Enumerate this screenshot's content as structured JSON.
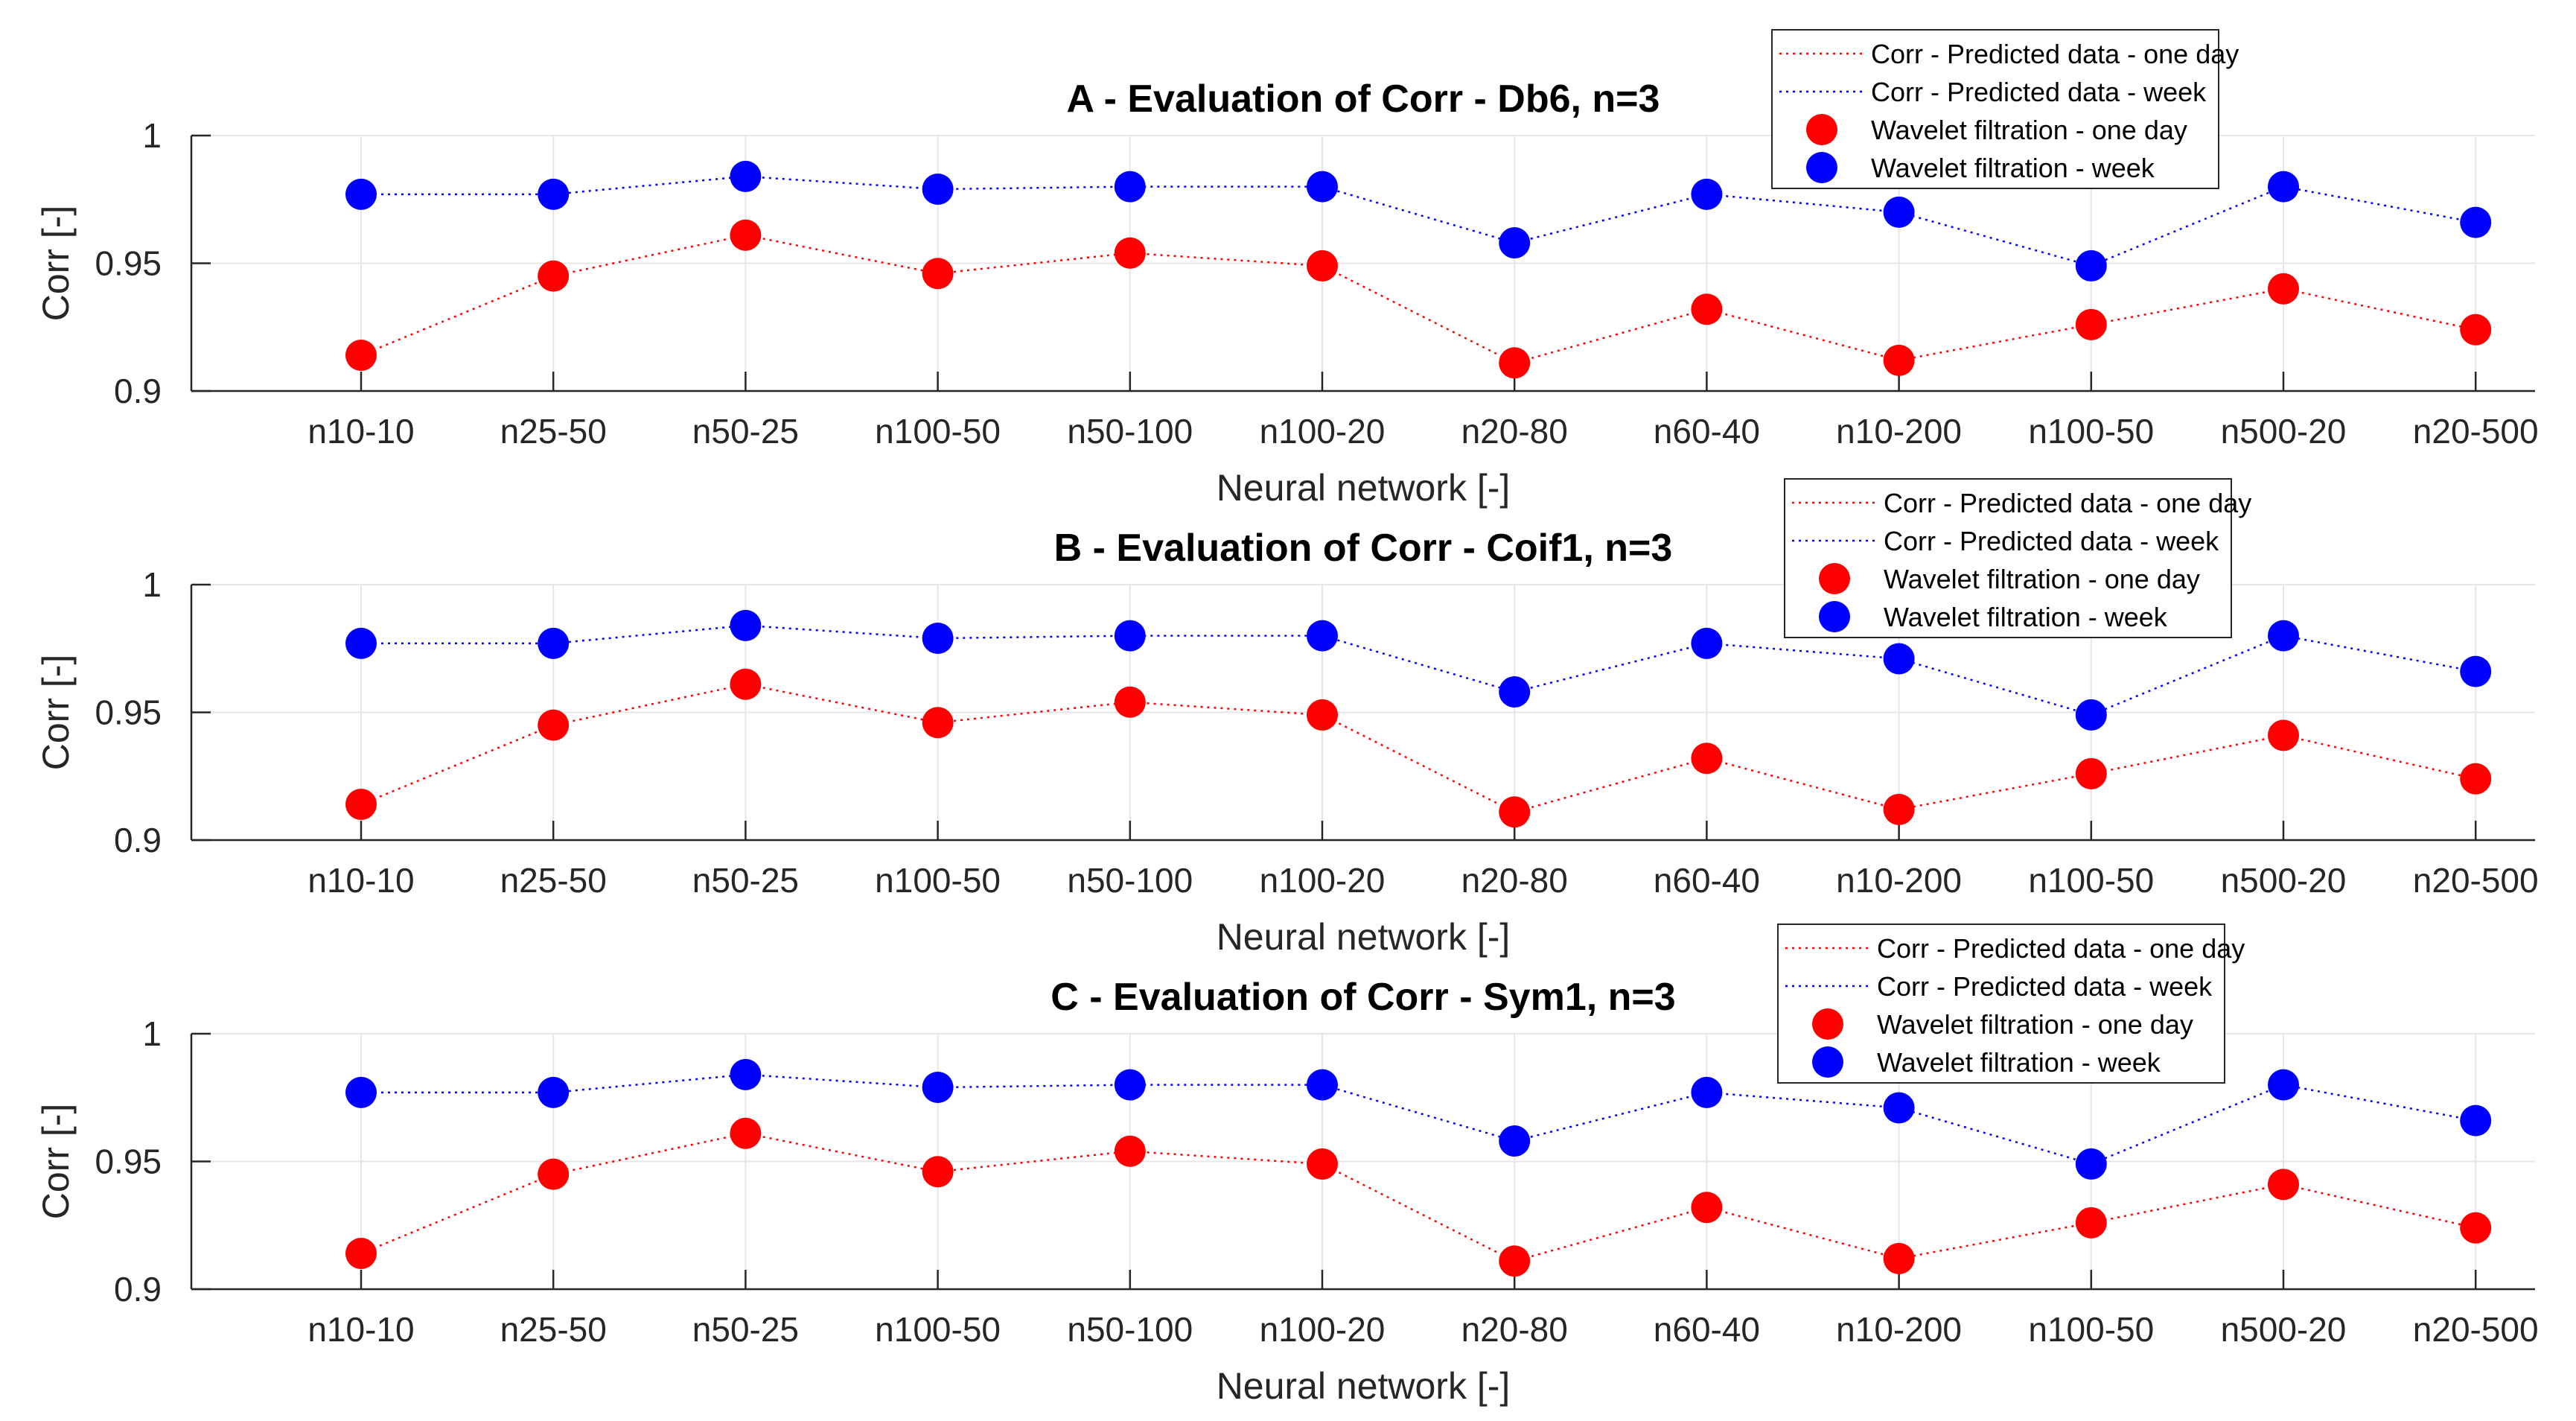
{
  "chart_data": [
    {
      "type": "line",
      "title": "A - Evaluation of Corr - Db6, n=3",
      "xlabel": "Neural network [-]",
      "ylabel": "Corr [-]",
      "ylim": [
        0.9,
        1.0
      ],
      "yticks": [
        "0.9",
        "0.95",
        "1"
      ],
      "grid": true,
      "legend_position": "top-right",
      "categories": [
        "n10-10",
        "n25-50",
        "n50-25",
        "n100-50",
        "n50-100",
        "n100-20",
        "n20-80",
        "n60-40",
        "n10-200",
        "n100-50",
        "n500-20",
        "n20-500"
      ],
      "series": [
        {
          "name": "Wavelet filtration - one day",
          "values": [
            0.914,
            0.945,
            0.961,
            0.946,
            0.954,
            0.949,
            0.911,
            0.932,
            0.912,
            0.926,
            0.94,
            0.924
          ]
        },
        {
          "name": "Wavelet filtration - week",
          "values": [
            0.977,
            0.977,
            0.984,
            0.979,
            0.98,
            0.98,
            0.958,
            0.977,
            0.97,
            0.949,
            0.98,
            0.966
          ]
        }
      ],
      "legend": [
        "Corr - Predicted data - one day",
        "Corr - Predicted data - week",
        "Wavelet filtration - one day",
        "Wavelet filtration - week"
      ]
    },
    {
      "type": "line",
      "title": "B - Evaluation of Corr - Coif1, n=3",
      "xlabel": "Neural network [-]",
      "ylabel": "Corr [-]",
      "ylim": [
        0.9,
        1.0
      ],
      "yticks": [
        "0.9",
        "0.95",
        "1"
      ],
      "grid": true,
      "legend_position": "top-right",
      "categories": [
        "n10-10",
        "n25-50",
        "n50-25",
        "n100-50",
        "n50-100",
        "n100-20",
        "n20-80",
        "n60-40",
        "n10-200",
        "n100-50",
        "n500-20",
        "n20-500"
      ],
      "series": [
        {
          "name": "Wavelet filtration - one day",
          "values": [
            0.914,
            0.945,
            0.961,
            0.946,
            0.954,
            0.949,
            0.911,
            0.932,
            0.912,
            0.926,
            0.941,
            0.924
          ]
        },
        {
          "name": "Wavelet filtration - week",
          "values": [
            0.977,
            0.977,
            0.984,
            0.979,
            0.98,
            0.98,
            0.958,
            0.977,
            0.971,
            0.949,
            0.98,
            0.966
          ]
        }
      ],
      "legend": [
        "Corr - Predicted data - one day",
        "Corr - Predicted data - week",
        "Wavelet filtration - one day",
        "Wavelet filtration - week"
      ]
    },
    {
      "type": "line",
      "title": "C - Evaluation of Corr - Sym1, n=3",
      "xlabel": "Neural network [-]",
      "ylabel": "Corr [-]",
      "ylim": [
        0.9,
        1.0
      ],
      "yticks": [
        "0.9",
        "0.95",
        "1"
      ],
      "grid": true,
      "legend_position": "top-right",
      "categories": [
        "n10-10",
        "n25-50",
        "n50-25",
        "n100-50",
        "n50-100",
        "n100-20",
        "n20-80",
        "n60-40",
        "n10-200",
        "n100-50",
        "n500-20",
        "n20-500"
      ],
      "series": [
        {
          "name": "Wavelet filtration - one day",
          "values": [
            0.914,
            0.945,
            0.961,
            0.946,
            0.954,
            0.949,
            0.911,
            0.932,
            0.912,
            0.926,
            0.941,
            0.924
          ]
        },
        {
          "name": "Wavelet filtration - week",
          "values": [
            0.977,
            0.977,
            0.984,
            0.979,
            0.98,
            0.98,
            0.958,
            0.977,
            0.971,
            0.949,
            0.98,
            0.966
          ]
        }
      ],
      "legend": [
        "Corr - Predicted data - one day",
        "Corr - Predicted data - week",
        "Wavelet filtration - one day",
        "Wavelet filtration - week"
      ]
    }
  ],
  "colors": {
    "one_day": "#ff0000",
    "week": "#0000ff",
    "grid": "#e6e6e6",
    "axis": "#262626"
  }
}
